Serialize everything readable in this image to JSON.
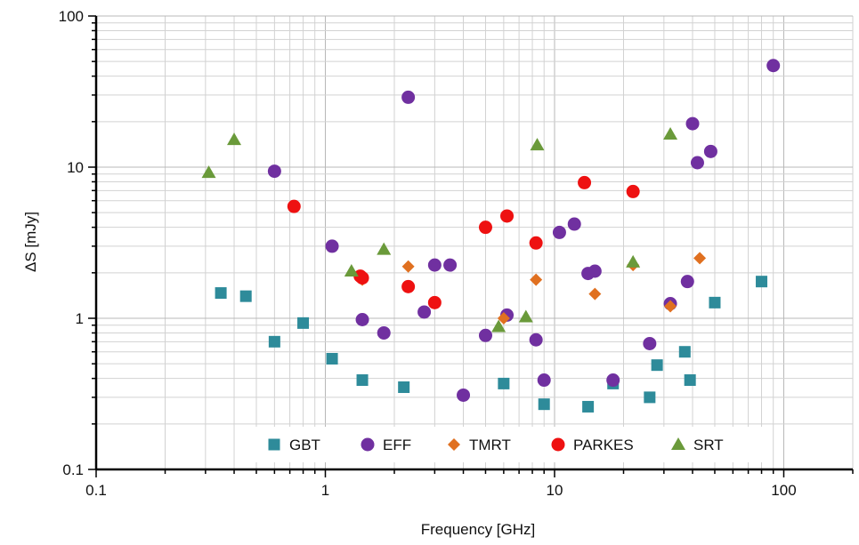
{
  "chart_data": {
    "type": "scatter",
    "xlabel": "Frequency [GHz]",
    "ylabel": "ΔS [mJy]",
    "x_scale": "log",
    "y_scale": "log",
    "xlim": [
      0.1,
      200
    ],
    "ylim": [
      0.1,
      100
    ],
    "x_tick_labels": [
      "0.1",
      "1",
      "10",
      "100"
    ],
    "y_tick_labels": [
      "0.1",
      "1",
      "10",
      "100"
    ],
    "grid": "major and minor",
    "legend_position": "bottom-center",
    "series": [
      {
        "name": "GBT",
        "marker": "square",
        "color": "#2e8b9a",
        "points": [
          [
            0.35,
            1.47
          ],
          [
            0.45,
            1.4
          ],
          [
            0.6,
            0.7
          ],
          [
            0.8,
            0.93
          ],
          [
            1.07,
            0.54
          ],
          [
            1.45,
            0.39
          ],
          [
            2.2,
            0.35
          ],
          [
            6,
            0.37
          ],
          [
            9,
            0.27
          ],
          [
            14,
            0.26
          ],
          [
            18,
            0.37
          ],
          [
            26,
            0.3
          ],
          [
            28,
            0.49
          ],
          [
            37,
            0.6
          ],
          [
            39,
            0.39
          ],
          [
            50,
            1.27
          ],
          [
            80,
            1.75
          ]
        ]
      },
      {
        "name": "EFF",
        "marker": "circle",
        "color": "#7030a0",
        "points": [
          [
            0.6,
            9.4
          ],
          [
            1.07,
            3.0
          ],
          [
            1.45,
            0.98
          ],
          [
            1.8,
            0.8
          ],
          [
            2.3,
            29.0
          ],
          [
            2.7,
            1.1
          ],
          [
            3.0,
            2.25
          ],
          [
            3.5,
            2.25
          ],
          [
            4.0,
            0.31
          ],
          [
            5.0,
            0.77
          ],
          [
            6.2,
            1.05
          ],
          [
            8.3,
            0.72
          ],
          [
            9.0,
            0.39
          ],
          [
            10.5,
            3.7
          ],
          [
            12.2,
            4.2
          ],
          [
            14.0,
            1.98
          ],
          [
            15.0,
            2.05
          ],
          [
            18.0,
            0.39
          ],
          [
            26.0,
            0.68
          ],
          [
            32.0,
            1.25
          ],
          [
            38.0,
            1.75
          ],
          [
            40.0,
            19.4
          ],
          [
            42.0,
            10.7
          ],
          [
            48.0,
            12.7
          ],
          [
            90.0,
            47.0
          ]
        ]
      },
      {
        "name": "TMRT",
        "marker": "diamond",
        "color": "#e07020",
        "points": [
          [
            1.45,
            1.8
          ],
          [
            2.3,
            2.2
          ],
          [
            6.0,
            1.0
          ],
          [
            8.3,
            1.8
          ],
          [
            15.0,
            1.45
          ],
          [
            22.0,
            2.25
          ],
          [
            32.0,
            1.2
          ],
          [
            43.0,
            2.5
          ]
        ]
      },
      {
        "name": "PARKES",
        "marker": "circle",
        "color": "#ee1111",
        "points": [
          [
            0.73,
            5.5
          ],
          [
            1.42,
            1.9
          ],
          [
            1.45,
            1.85
          ],
          [
            2.3,
            1.62
          ],
          [
            3.0,
            1.27
          ],
          [
            5.0,
            4.0
          ],
          [
            6.2,
            4.75
          ],
          [
            8.3,
            3.15
          ],
          [
            13.5,
            7.9
          ],
          [
            22.0,
            6.9
          ]
        ]
      },
      {
        "name": "SRT",
        "marker": "triangle",
        "color": "#6a9a3a",
        "points": [
          [
            0.31,
            9.2
          ],
          [
            0.4,
            15.2
          ],
          [
            1.3,
            2.05
          ],
          [
            1.8,
            2.85
          ],
          [
            5.7,
            0.88
          ],
          [
            7.5,
            1.02
          ],
          [
            8.4,
            14.0
          ],
          [
            22.0,
            2.35
          ],
          [
            32.0,
            16.5
          ]
        ]
      }
    ]
  }
}
